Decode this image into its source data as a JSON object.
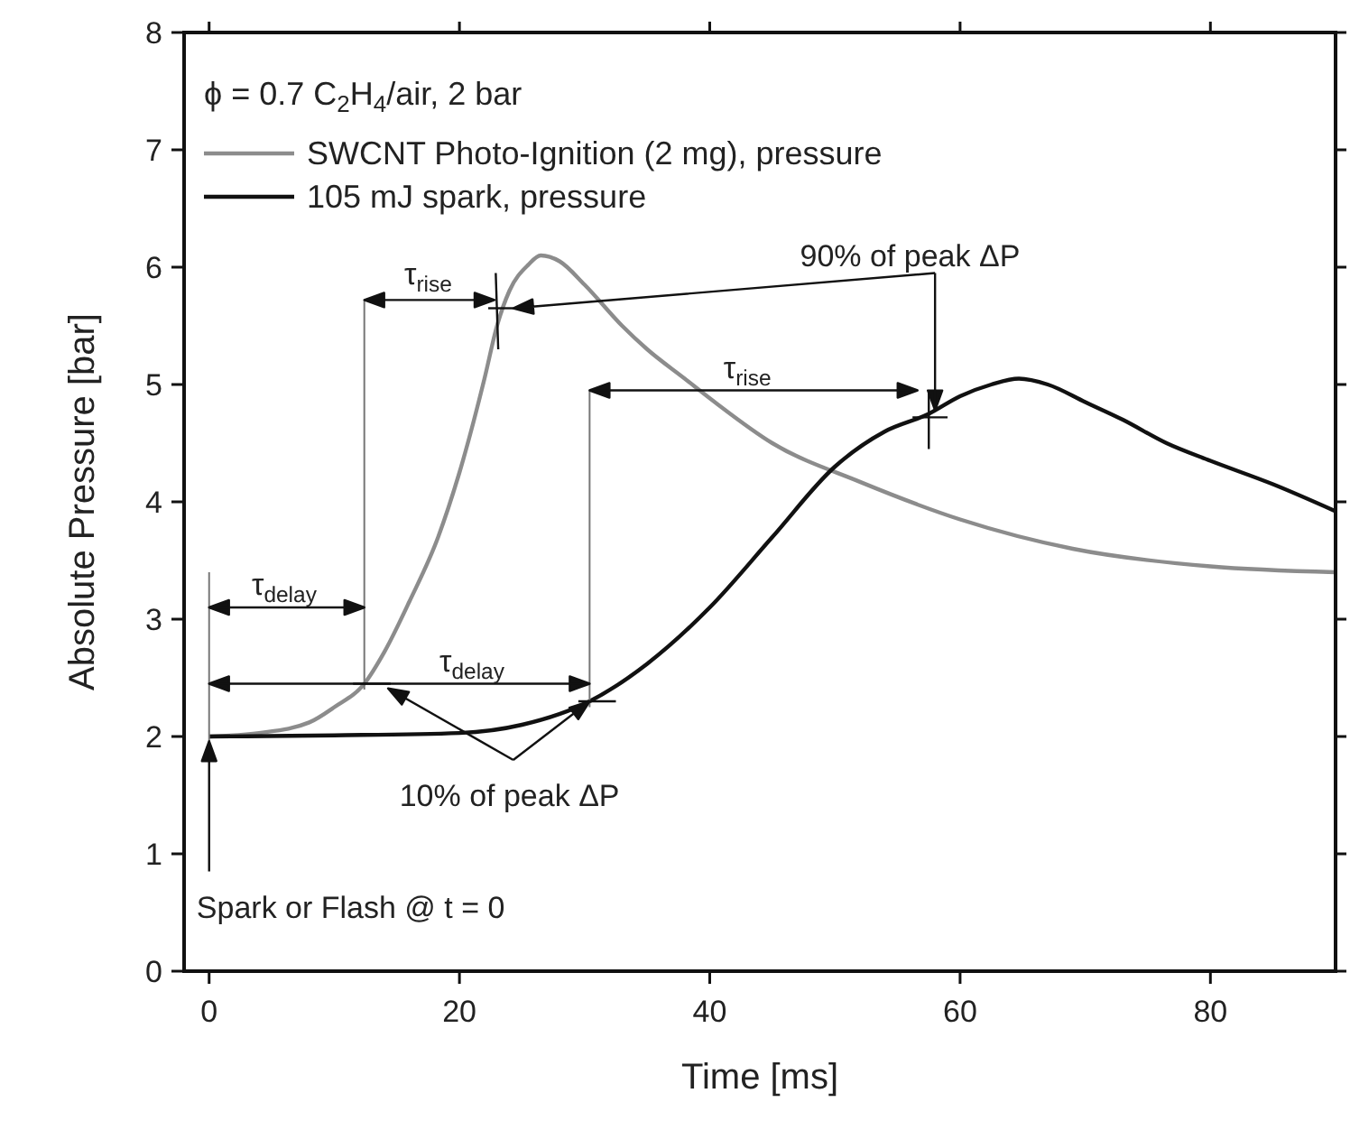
{
  "chart_data": {
    "type": "line",
    "xlabel": "Time [ms]",
    "ylabel": "Absolute Pressure [bar]",
    "legend_title": "ϕ = 0.7 C$_{2}$H$_{4}$/air, 2 bar",
    "legend": "top left",
    "grid": false,
    "marker": "none",
    "line_style": "solid",
    "xlim": [
      -2,
      90
    ],
    "ylim": [
      0,
      8
    ],
    "xticks": [
      0,
      20,
      40,
      60,
      80
    ],
    "yticks": [
      0,
      1,
      2,
      3,
      4,
      5,
      6,
      7,
      8
    ],
    "series": [
      {
        "name": "SWCNT Photo-Ignition (2 mg), pressure",
        "color": "#8c8c8c",
        "x": [
          0,
          4,
          8,
          10,
          12.4,
          14,
          16,
          18.3,
          20,
          22,
          23,
          24,
          25.5,
          26.5,
          28,
          30,
          33,
          35,
          38,
          40.4,
          45,
          52,
          60,
          69,
          80,
          90
        ],
        "values": [
          2,
          2.03,
          2.12,
          2.25,
          2.45,
          2.72,
          3.15,
          3.7,
          4.25,
          5.05,
          5.5,
          5.8,
          6.02,
          6.1,
          6.05,
          5.85,
          5.5,
          5.3,
          5.05,
          4.85,
          4.5,
          4.17,
          3.85,
          3.6,
          3.45,
          3.4
        ]
      },
      {
        "name": "105 mJ spark, pressure",
        "color": "#111111",
        "x": [
          0,
          10,
          20,
          25,
          30.4,
          35,
          40,
          45,
          50,
          54,
          57.5,
          60,
          62.5,
          64.7,
          67,
          70,
          73,
          76.5,
          80,
          85,
          90
        ],
        "values": [
          2,
          2.01,
          2.03,
          2.1,
          2.3,
          2.62,
          3.1,
          3.7,
          4.3,
          4.6,
          4.75,
          4.9,
          5.0,
          5.05,
          5.0,
          4.85,
          4.7,
          4.5,
          4.35,
          4.15,
          3.92
        ]
      }
    ],
    "annotations": [
      "τ$_{rise}$",
      "τ$_{rise}$",
      "τ$_{delay}$",
      "τ$_{delay}$",
      {
        "text": "90% of peak ΔP",
        "x": 58,
        "y": 4.78
      },
      {
        "text": "10% of peak ΔP",
        "x": 30.4,
        "y": 2.3
      },
      "Spark or Flash @ t = 0"
    ]
  }
}
